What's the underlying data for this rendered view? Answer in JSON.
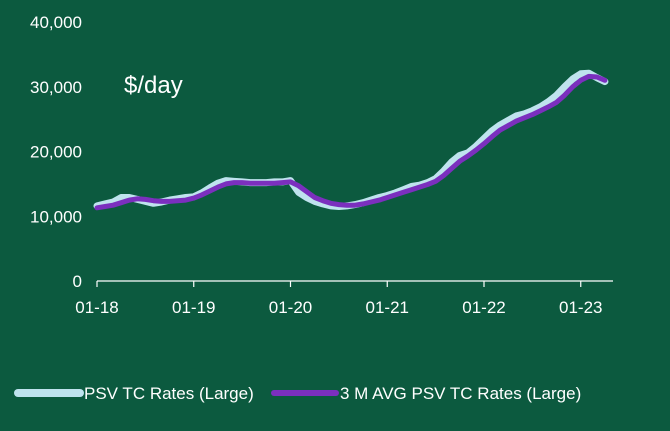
{
  "chart_data": {
    "type": "line",
    "title": "",
    "unit_label": "$/day",
    "xlabel": "",
    "ylabel": "",
    "ylim": [
      0,
      40000
    ],
    "yticks": [
      0,
      10000,
      20000,
      30000,
      40000
    ],
    "ytick_labels": [
      "0",
      "10,000",
      "20,000",
      "30,000",
      "40,000"
    ],
    "xlim": [
      "2018-01",
      "2023-05"
    ],
    "xticks": [
      "2018-01",
      "2019-01",
      "2020-01",
      "2021-01",
      "2022-01",
      "2023-01"
    ],
    "xtick_labels": [
      "01-18",
      "01-19",
      "01-20",
      "01-21",
      "01-22",
      "01-23"
    ],
    "grid": false,
    "legend_position": "bottom",
    "series": [
      {
        "name": "PSV TC Rates (Large)",
        "color": "#bfe3ee",
        "x": [
          "2018-01",
          "2018-02",
          "2018-03",
          "2018-04",
          "2018-05",
          "2018-06",
          "2018-07",
          "2018-08",
          "2018-09",
          "2018-10",
          "2018-11",
          "2018-12",
          "2019-01",
          "2019-02",
          "2019-03",
          "2019-04",
          "2019-05",
          "2019-06",
          "2019-07",
          "2019-08",
          "2019-09",
          "2019-10",
          "2019-11",
          "2019-12",
          "2020-01",
          "2020-02",
          "2020-03",
          "2020-04",
          "2020-05",
          "2020-06",
          "2020-07",
          "2020-08",
          "2020-09",
          "2020-10",
          "2020-11",
          "2020-12",
          "2021-01",
          "2021-02",
          "2021-03",
          "2021-04",
          "2021-05",
          "2021-06",
          "2021-07",
          "2021-08",
          "2021-09",
          "2021-10",
          "2021-11",
          "2021-12",
          "2022-01",
          "2022-02",
          "2022-03",
          "2022-04",
          "2022-05",
          "2022-06",
          "2022-07",
          "2022-08",
          "2022-09",
          "2022-10",
          "2022-11",
          "2022-12",
          "2023-01",
          "2023-02",
          "2023-03",
          "2023-04"
        ],
        "values": [
          11600,
          11900,
          12200,
          12900,
          12900,
          12600,
          12300,
          12000,
          12200,
          12500,
          12700,
          12900,
          13000,
          13600,
          14400,
          15100,
          15500,
          15400,
          15300,
          15200,
          15200,
          15200,
          15300,
          15300,
          15500,
          13700,
          12900,
          12300,
          11900,
          11600,
          11500,
          11600,
          11800,
          12100,
          12500,
          12900,
          13200,
          13600,
          14100,
          14600,
          14800,
          15200,
          15800,
          17000,
          18400,
          19400,
          19800,
          20800,
          22000,
          23200,
          24100,
          24800,
          25500,
          25800,
          26300,
          26900,
          27700,
          28700,
          30000,
          31200,
          32000,
          32100,
          31400,
          30800
        ]
      },
      {
        "name": "3 M AVG PSV TC Rates (Large)",
        "color": "#7b2fbe",
        "x": [
          "2018-01",
          "2018-02",
          "2018-03",
          "2018-04",
          "2018-05",
          "2018-06",
          "2018-07",
          "2018-08",
          "2018-09",
          "2018-10",
          "2018-11",
          "2018-12",
          "2019-01",
          "2019-02",
          "2019-03",
          "2019-04",
          "2019-05",
          "2019-06",
          "2019-07",
          "2019-08",
          "2019-09",
          "2019-10",
          "2019-11",
          "2019-12",
          "2020-01",
          "2020-02",
          "2020-03",
          "2020-04",
          "2020-05",
          "2020-06",
          "2020-07",
          "2020-08",
          "2020-09",
          "2020-10",
          "2020-11",
          "2020-12",
          "2021-01",
          "2021-02",
          "2021-03",
          "2021-04",
          "2021-05",
          "2021-06",
          "2021-07",
          "2021-08",
          "2021-09",
          "2021-10",
          "2021-11",
          "2021-12",
          "2022-01",
          "2022-02",
          "2022-03",
          "2022-04",
          "2022-05",
          "2022-06",
          "2022-07",
          "2022-08",
          "2022-09",
          "2022-10",
          "2022-11",
          "2022-12",
          "2023-01",
          "2023-02",
          "2023-03",
          "2023-04"
        ],
        "values": [
          11300,
          11500,
          11700,
          12100,
          12500,
          12700,
          12600,
          12400,
          12300,
          12300,
          12400,
          12500,
          12800,
          13300,
          13900,
          14500,
          15000,
          15200,
          15200,
          15100,
          15100,
          15100,
          15100,
          15200,
          15300,
          14700,
          13800,
          12900,
          12400,
          12000,
          11800,
          11700,
          11700,
          11900,
          12200,
          12500,
          12900,
          13300,
          13700,
          14100,
          14500,
          14900,
          15400,
          16300,
          17400,
          18500,
          19300,
          20200,
          21200,
          22300,
          23300,
          24000,
          24700,
          25200,
          25700,
          26300,
          26900,
          27600,
          28700,
          30000,
          31000,
          31600,
          31500,
          31000
        ]
      }
    ]
  }
}
